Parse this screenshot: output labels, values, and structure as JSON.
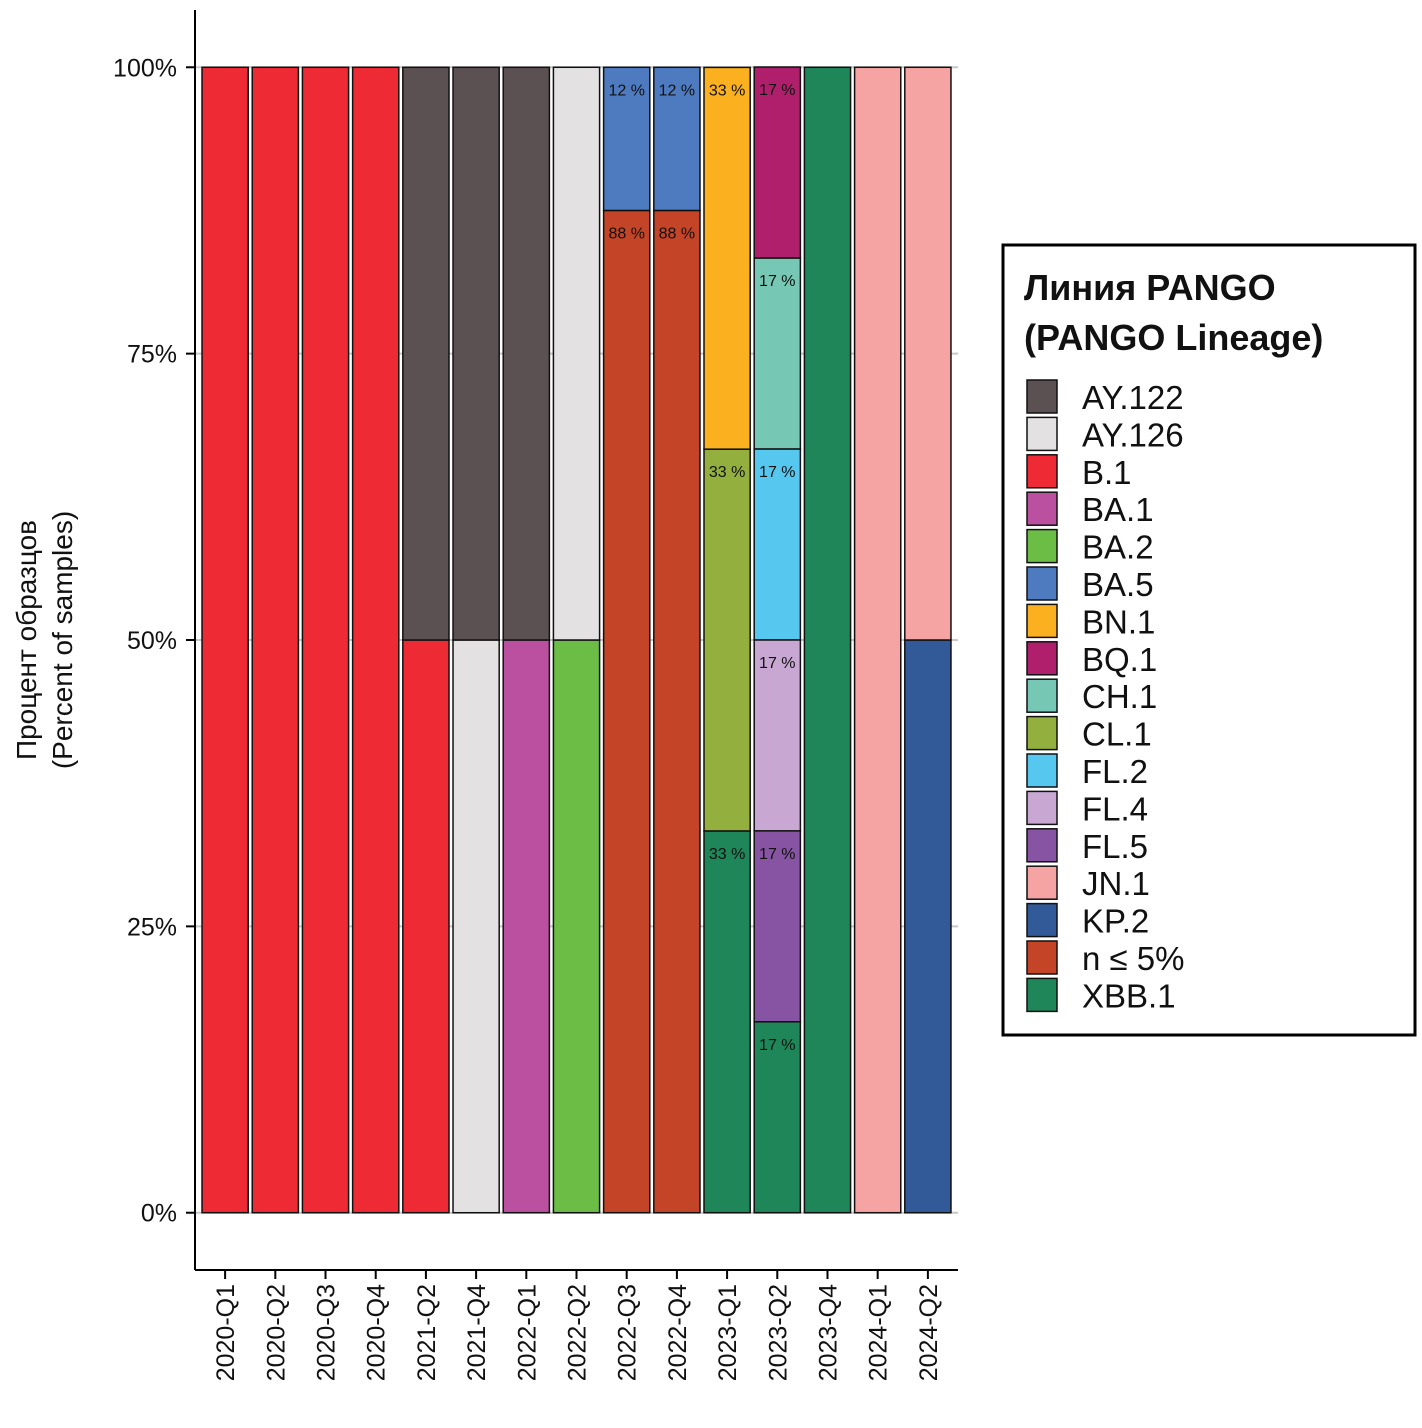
{
  "chart_data": {
    "type": "stacked_bar",
    "y_label": [
      "Процент образцов",
      "(Percent of samples)"
    ],
    "legend_title": [
      "Линия PANGO",
      "(PANGO Lineage)"
    ],
    "legend_position": "right",
    "grid": true,
    "categories": [
      "2020-Q1",
      "2020-Q2",
      "2020-Q3",
      "2020-Q4",
      "2021-Q2",
      "2021-Q4",
      "2022-Q1",
      "2022-Q2",
      "2022-Q3",
      "2022-Q4",
      "2023-Q1",
      "2023-Q2",
      "2023-Q4",
      "2024-Q1",
      "2024-Q2"
    ],
    "ylim": [
      -5,
      105
    ],
    "yticks": [
      {
        "value": 0,
        "label": "0%"
      },
      {
        "value": 25,
        "label": "25%"
      },
      {
        "value": 50,
        "label": "50%"
      },
      {
        "value": 75,
        "label": "75%"
      },
      {
        "value": 100,
        "label": "100%"
      }
    ],
    "series": [
      {
        "name": "AY.122",
        "color": "#5b5052",
        "values": [
          null,
          null,
          null,
          null,
          50,
          50,
          50,
          null,
          null,
          null,
          null,
          null,
          null,
          null,
          null
        ]
      },
      {
        "name": "AY.126",
        "color": "#e3e1e2",
        "values": [
          null,
          null,
          null,
          null,
          null,
          50,
          null,
          50,
          null,
          null,
          null,
          null,
          null,
          null,
          null
        ]
      },
      {
        "name": "B.1",
        "color": "#ee2a35",
        "values": [
          100,
          100,
          100,
          100,
          50,
          null,
          null,
          null,
          null,
          null,
          null,
          null,
          null,
          null,
          null
        ]
      },
      {
        "name": "BA.1",
        "color": "#bb4fa0",
        "values": [
          null,
          null,
          null,
          null,
          null,
          null,
          50,
          null,
          null,
          null,
          null,
          null,
          null,
          null,
          null
        ]
      },
      {
        "name": "BA.2",
        "color": "#6cbd45",
        "values": [
          null,
          null,
          null,
          null,
          null,
          null,
          null,
          50,
          null,
          null,
          null,
          null,
          null,
          null,
          null
        ]
      },
      {
        "name": "BA.5",
        "color": "#4e7bc0",
        "values": [
          null,
          null,
          null,
          null,
          null,
          null,
          null,
          null,
          12.5,
          12.5,
          null,
          null,
          null,
          null,
          null
        ],
        "value_labels": [
          null,
          null,
          null,
          null,
          null,
          null,
          null,
          null,
          "12 %",
          "12 %",
          null,
          null,
          null,
          null,
          null
        ]
      },
      {
        "name": "BN.1",
        "color": "#fbb01f",
        "values": [
          null,
          null,
          null,
          null,
          null,
          null,
          null,
          null,
          null,
          null,
          33.33,
          null,
          null,
          null,
          null
        ],
        "value_labels": [
          null,
          null,
          null,
          null,
          null,
          null,
          null,
          null,
          null,
          null,
          "33 %",
          null,
          null,
          null,
          null
        ]
      },
      {
        "name": "BQ.1",
        "color": "#b01f6c",
        "values": [
          null,
          null,
          null,
          null,
          null,
          null,
          null,
          null,
          null,
          null,
          null,
          16.67,
          null,
          null,
          null
        ],
        "value_labels": [
          null,
          null,
          null,
          null,
          null,
          null,
          null,
          null,
          null,
          null,
          null,
          "17 %",
          null,
          null,
          null
        ]
      },
      {
        "name": "CH.1",
        "color": "#76c8b5",
        "values": [
          null,
          null,
          null,
          null,
          null,
          null,
          null,
          null,
          null,
          null,
          null,
          16.67,
          null,
          null,
          null
        ],
        "value_labels": [
          null,
          null,
          null,
          null,
          null,
          null,
          null,
          null,
          null,
          null,
          null,
          "17 %",
          null,
          null,
          null
        ]
      },
      {
        "name": "CL.1",
        "color": "#93b03f",
        "values": [
          null,
          null,
          null,
          null,
          null,
          null,
          null,
          null,
          null,
          null,
          33.33,
          null,
          null,
          null,
          null
        ],
        "value_labels": [
          null,
          null,
          null,
          null,
          null,
          null,
          null,
          null,
          null,
          null,
          "33 %",
          null,
          null,
          null,
          null
        ]
      },
      {
        "name": "FL.2",
        "color": "#56c7ee",
        "values": [
          null,
          null,
          null,
          null,
          null,
          null,
          null,
          null,
          null,
          null,
          null,
          16.67,
          null,
          null,
          null
        ],
        "value_labels": [
          null,
          null,
          null,
          null,
          null,
          null,
          null,
          null,
          null,
          null,
          null,
          "17 %",
          null,
          null,
          null
        ]
      },
      {
        "name": "FL.4",
        "color": "#c8a8d2",
        "values": [
          null,
          null,
          null,
          null,
          null,
          null,
          null,
          null,
          null,
          null,
          null,
          16.67,
          null,
          null,
          null
        ],
        "value_labels": [
          null,
          null,
          null,
          null,
          null,
          null,
          null,
          null,
          null,
          null,
          null,
          "17 %",
          null,
          null,
          null
        ]
      },
      {
        "name": "FL.5",
        "color": "#8654a3",
        "values": [
          null,
          null,
          null,
          null,
          null,
          null,
          null,
          null,
          null,
          null,
          null,
          16.67,
          null,
          null,
          null
        ],
        "value_labels": [
          null,
          null,
          null,
          null,
          null,
          null,
          null,
          null,
          null,
          null,
          null,
          "17 %",
          null,
          null,
          null
        ]
      },
      {
        "name": "JN.1",
        "color": "#f6a3a3",
        "values": [
          null,
          null,
          null,
          null,
          null,
          null,
          null,
          null,
          null,
          null,
          null,
          null,
          null,
          100,
          50
        ]
      },
      {
        "name": "KP.2",
        "color": "#325a99",
        "values": [
          null,
          null,
          null,
          null,
          null,
          null,
          null,
          null,
          null,
          null,
          null,
          null,
          null,
          null,
          50
        ]
      },
      {
        "name": "n ≤ 5%",
        "color": "#c44428",
        "values": [
          null,
          null,
          null,
          null,
          null,
          null,
          null,
          null,
          87.5,
          87.5,
          null,
          null,
          null,
          null,
          null
        ],
        "value_labels": [
          null,
          null,
          null,
          null,
          null,
          null,
          null,
          null,
          "88 %",
          "88 %",
          null,
          null,
          null,
          null,
          null
        ]
      },
      {
        "name": "XBB.1",
        "color": "#1e8658",
        "values": [
          null,
          null,
          null,
          null,
          null,
          null,
          null,
          null,
          null,
          null,
          33.33,
          16.67,
          100,
          null,
          null
        ],
        "value_labels": [
          null,
          null,
          null,
          null,
          null,
          null,
          null,
          null,
          null,
          null,
          "33 %",
          "17 %",
          null,
          null,
          null
        ]
      }
    ]
  }
}
